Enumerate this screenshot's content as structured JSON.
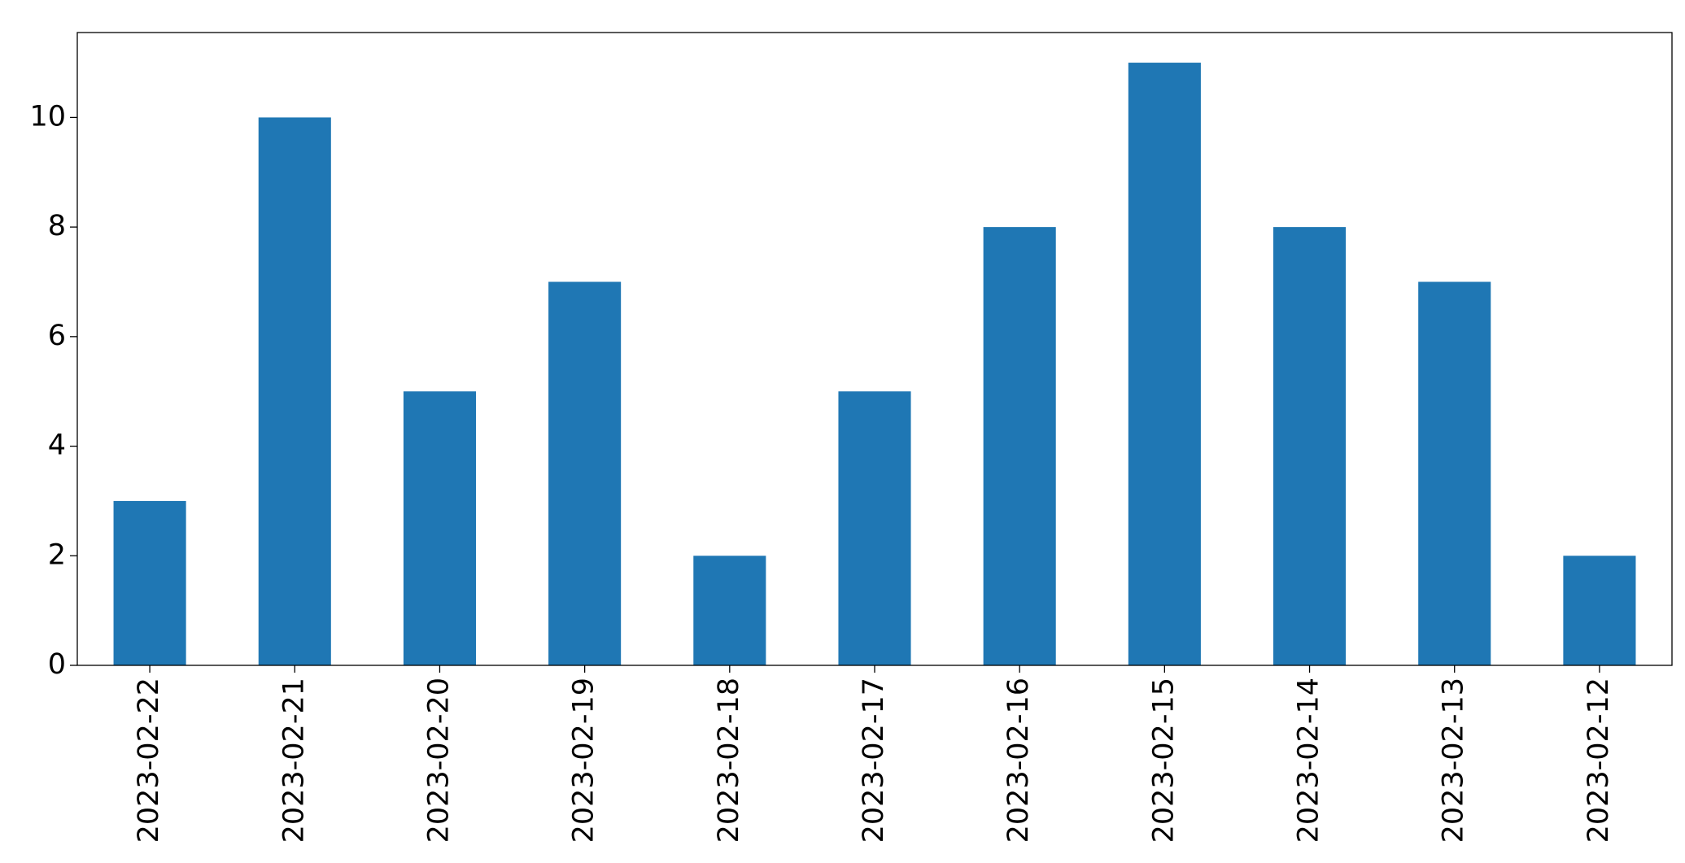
{
  "chart_data": {
    "type": "bar",
    "categories": [
      "2023-02-22",
      "2023-02-21",
      "2023-02-20",
      "2023-02-19",
      "2023-02-18",
      "2023-02-17",
      "2023-02-16",
      "2023-02-15",
      "2023-02-14",
      "2023-02-13",
      "2023-02-12"
    ],
    "values": [
      3,
      10,
      5,
      7,
      2,
      5,
      8,
      11,
      8,
      7,
      2
    ],
    "color": "#1f77b4",
    "ylim": [
      0,
      11.55
    ],
    "yticks": [
      0,
      2,
      4,
      6,
      8,
      10
    ],
    "grid": false
  }
}
